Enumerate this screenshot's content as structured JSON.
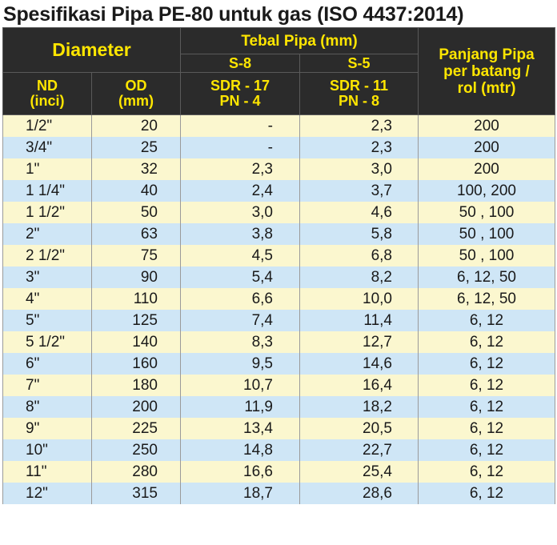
{
  "title": "Spesifikasi Pipa PE-80 untuk gas (ISO 4437:2014)",
  "header": {
    "diameter": "Diameter",
    "tebal_pipa": "Tebal Pipa (mm)",
    "s8": "S-8",
    "s5": "S-5",
    "panjang_l1": "Panjang Pipa",
    "panjang_l2": "per batang /",
    "panjang_l3": "rol (mtr)",
    "nd_l1": "ND",
    "nd_l2": "(inci)",
    "od_l1": "OD",
    "od_l2": "(mm)",
    "sdr17_l1": "SDR - 17",
    "sdr17_l2": "PN - 4",
    "sdr11_l1": "SDR - 11",
    "sdr11_l2": "PN - 8"
  },
  "rows": [
    {
      "nd": "1/2\"",
      "od": "20",
      "s8": "-",
      "s5": "2,3",
      "panjang": "200"
    },
    {
      "nd": "3/4\"",
      "od": "25",
      "s8": "-",
      "s5": "2,3",
      "panjang": "200"
    },
    {
      "nd": "1\"",
      "od": "32",
      "s8": "2,3",
      "s5": "3,0",
      "panjang": "200"
    },
    {
      "nd": "1 1/4\"",
      "od": "40",
      "s8": "2,4",
      "s5": "3,7",
      "panjang": "100, 200"
    },
    {
      "nd": "1 1/2\"",
      "od": "50",
      "s8": "3,0",
      "s5": "4,6",
      "panjang": "50 , 100"
    },
    {
      "nd": "2\"",
      "od": "63",
      "s8": "3,8",
      "s5": "5,8",
      "panjang": "50 , 100"
    },
    {
      "nd": "2 1/2\"",
      "od": "75",
      "s8": "4,5",
      "s5": "6,8",
      "panjang": "50 , 100"
    },
    {
      "nd": "3\"",
      "od": "90",
      "s8": "5,4",
      "s5": "8,2",
      "panjang": "6, 12, 50"
    },
    {
      "nd": "4\"",
      "od": "110",
      "s8": "6,6",
      "s5": "10,0",
      "panjang": "6, 12, 50"
    },
    {
      "nd": "5\"",
      "od": "125",
      "s8": "7,4",
      "s5": "11,4",
      "panjang": "6, 12"
    },
    {
      "nd": "5 1/2\"",
      "od": "140",
      "s8": "8,3",
      "s5": "12,7",
      "panjang": "6, 12"
    },
    {
      "nd": "6\"",
      "od": "160",
      "s8": "9,5",
      "s5": "14,6",
      "panjang": "6, 12"
    },
    {
      "nd": "7\"",
      "od": "180",
      "s8": "10,7",
      "s5": "16,4",
      "panjang": "6, 12"
    },
    {
      "nd": "8\"",
      "od": "200",
      "s8": "11,9",
      "s5": "18,2",
      "panjang": "6, 12"
    },
    {
      "nd": "9\"",
      "od": "225",
      "s8": "13,4",
      "s5": "20,5",
      "panjang": "6, 12"
    },
    {
      "nd": "10\"",
      "od": "250",
      "s8": "14,8",
      "s5": "22,7",
      "panjang": "6, 12"
    },
    {
      "nd": "11\"",
      "od": "280",
      "s8": "16,6",
      "s5": "25,4",
      "panjang": "6, 12"
    },
    {
      "nd": "12\"",
      "od": "315",
      "s8": "18,7",
      "s5": "28,6",
      "panjang": "6, 12"
    }
  ],
  "colors": {
    "header_bg": "#2b2b2b",
    "header_text": "#ffe600",
    "row_odd": "#fbf7cf",
    "row_even": "#cfe6f6"
  }
}
